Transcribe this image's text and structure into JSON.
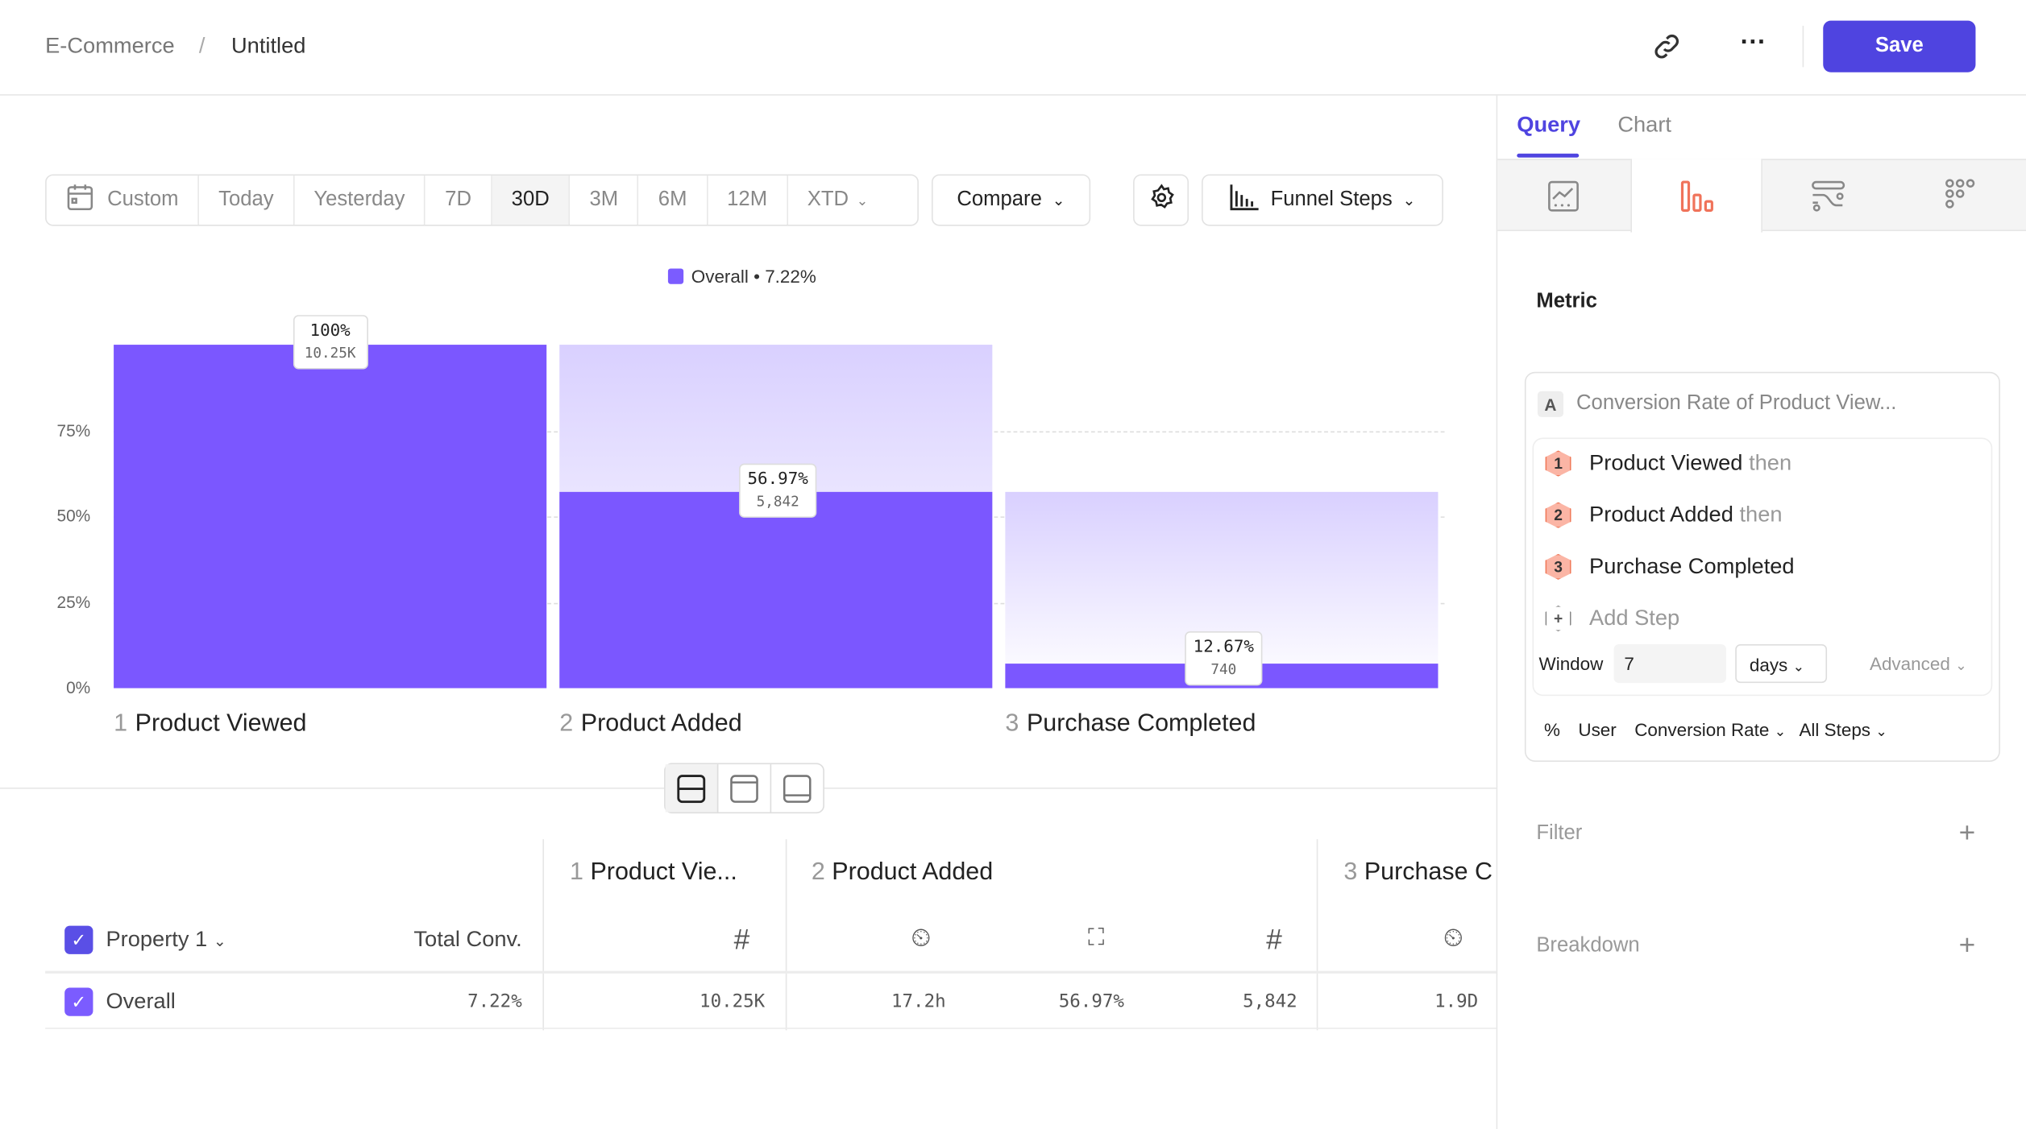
{
  "breadcrumb": {
    "root": "E-Commerce",
    "separator": "/",
    "current": "Untitled"
  },
  "header": {
    "save_label": "Save",
    "link_icon": "link-icon",
    "more_icon": "more-icon"
  },
  "toolbar": {
    "date_ranges": [
      "Custom",
      "Today",
      "Yesterday",
      "7D",
      "30D",
      "3M",
      "6M",
      "12M",
      "XTD"
    ],
    "selected_range": "30D",
    "compare_label": "Compare",
    "funnel_label": "Funnel Steps"
  },
  "legend": {
    "label": "Overall • 7.22%",
    "color": "#7b5cff"
  },
  "chart_data": {
    "type": "bar",
    "categories": [
      "Product Viewed",
      "Product Added",
      "Purchase Completed"
    ],
    "step_numbers": [
      "1",
      "2",
      "3"
    ],
    "series": [
      {
        "name": "Overall",
        "values": [
          100,
          56.97,
          7.22
        ]
      }
    ],
    "previous_step_values": [
      null,
      100,
      56.97
    ],
    "data_labels": [
      "100%",
      "56.97%",
      "12.67%"
    ],
    "counts": [
      "10.25K",
      "5,842",
      "740"
    ],
    "yticks": [
      "0%",
      "25%",
      "50%",
      "75%"
    ],
    "ylim": [
      0,
      100
    ],
    "grid": true,
    "legend_position": "top-center"
  },
  "table": {
    "property_label": "Property 1",
    "total_conv_label": "Total Conv.",
    "steps": [
      {
        "num": "1",
        "name": "Product Vie..."
      },
      {
        "num": "2",
        "name": "Product Added"
      },
      {
        "num": "3",
        "name": "Purchase C"
      }
    ],
    "row": {
      "label": "Overall",
      "total": "7.22%",
      "values": [
        "10.25K",
        "17.2h",
        "56.97%",
        "5,842",
        "1.9D"
      ]
    }
  },
  "side": {
    "tabs": [
      "Query",
      "Chart"
    ],
    "active_tab": "Query",
    "metric_title": "Metric",
    "metric_letter": "A",
    "metric_name": "Conversion Rate of Product View...",
    "steps": [
      {
        "num": "1",
        "name": "Product Viewed",
        "suffix": "then"
      },
      {
        "num": "2",
        "name": "Product Added",
        "suffix": "then"
      },
      {
        "num": "3",
        "name": "Purchase Completed",
        "suffix": ""
      }
    ],
    "add_step": "Add Step",
    "window_label": "Window",
    "window_value": "7",
    "window_unit": "days",
    "advanced": "Advanced",
    "measure": {
      "symbol": "%",
      "who": "User",
      "type": "Conversion Rate",
      "steps": "All Steps"
    },
    "filter": "Filter",
    "breakdown": "Breakdown"
  }
}
